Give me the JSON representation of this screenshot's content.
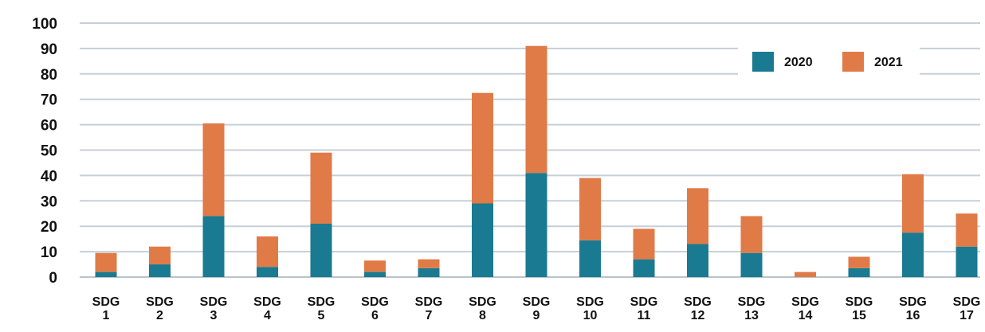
{
  "chart_data": {
    "type": "bar",
    "stacked": true,
    "title": "",
    "xlabel": "",
    "ylabel": "",
    "ylim": [
      0,
      100
    ],
    "yticks": [
      0,
      10,
      20,
      30,
      40,
      50,
      60,
      70,
      80,
      90,
      100
    ],
    "grid": true,
    "legend_position": "top-right",
    "categories": [
      [
        "SDG",
        "1"
      ],
      [
        "SDG",
        "2"
      ],
      [
        "SDG",
        "3"
      ],
      [
        "SDG",
        "4"
      ],
      [
        "SDG",
        "5"
      ],
      [
        "SDG",
        "6"
      ],
      [
        "SDG",
        "7"
      ],
      [
        "SDG",
        "8"
      ],
      [
        "SDG",
        "9"
      ],
      [
        "SDG",
        "10"
      ],
      [
        "SDG",
        "11"
      ],
      [
        "SDG",
        "12"
      ],
      [
        "SDG",
        "13"
      ],
      [
        "SDG",
        "14"
      ],
      [
        "SDG",
        "15"
      ],
      [
        "SDG",
        "16"
      ],
      [
        "SDG",
        "17"
      ]
    ],
    "series": [
      {
        "name": "2020",
        "color": "#1a7a91",
        "values": [
          2,
          5,
          24,
          4,
          21,
          2,
          3.5,
          29,
          41,
          14.5,
          7,
          13,
          9.5,
          0,
          3.5,
          17.5,
          12
        ]
      },
      {
        "name": "2021",
        "color": "#e07a47",
        "values": [
          7.5,
          7,
          36.5,
          12,
          28,
          4.5,
          3.5,
          43.5,
          50,
          24.5,
          12,
          22,
          14.5,
          2,
          4.5,
          23,
          13
        ]
      }
    ]
  }
}
